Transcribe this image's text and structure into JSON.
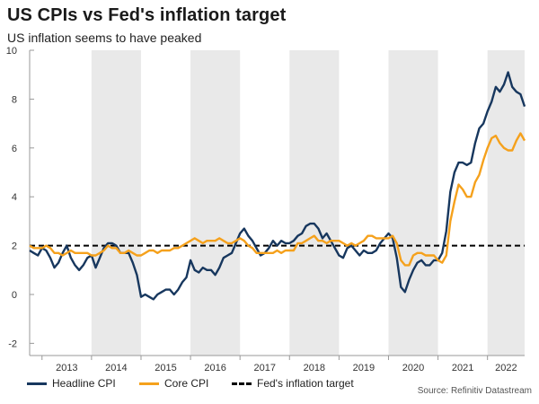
{
  "title": "US CPIs vs Fed's inflation target",
  "subtitle": "US inflation seems to have peaked",
  "source": "Source: Refinitiv Datastream",
  "colors": {
    "headline": "#17375e",
    "core": "#f5a11c",
    "target": "#000000",
    "shade": "#e9e9e9",
    "axis": "#999999"
  },
  "chart_data": {
    "type": "line",
    "title": "US CPIs vs Fed's inflation target",
    "subtitle": "US inflation seems to have peaked",
    "ylim": [
      -2.5,
      10
    ],
    "yticks": [
      -2,
      0,
      2,
      4,
      6,
      8,
      10
    ],
    "xlim": [
      "2012-10",
      "2022-10"
    ],
    "year_labels": [
      "2013",
      "2014",
      "2015",
      "2016",
      "2017",
      "2018",
      "2019",
      "2020",
      "2021",
      "2022"
    ],
    "shaded_years": [
      "2014",
      "2016",
      "2018",
      "2020",
      "2022"
    ],
    "grid": false,
    "legend_position": "bottom",
    "series": [
      {
        "name": "Headline CPI",
        "color": "#17375e",
        "points": [
          [
            "2012-10",
            1.8
          ],
          [
            "2012-11",
            1.7
          ],
          [
            "2012-12",
            1.6
          ],
          [
            "2013-01",
            1.9
          ],
          [
            "2013-02",
            1.8
          ],
          [
            "2013-03",
            1.5
          ],
          [
            "2013-04",
            1.1
          ],
          [
            "2013-05",
            1.3
          ],
          [
            "2013-06",
            1.7
          ],
          [
            "2013-07",
            2.0
          ],
          [
            "2013-08",
            1.5
          ],
          [
            "2013-09",
            1.2
          ],
          [
            "2013-10",
            1.0
          ],
          [
            "2013-11",
            1.2
          ],
          [
            "2013-12",
            1.5
          ],
          [
            "2014-01",
            1.6
          ],
          [
            "2014-02",
            1.1
          ],
          [
            "2014-03",
            1.5
          ],
          [
            "2014-04",
            1.9
          ],
          [
            "2014-05",
            2.1
          ],
          [
            "2014-06",
            2.1
          ],
          [
            "2014-07",
            2.0
          ],
          [
            "2014-08",
            1.7
          ],
          [
            "2014-09",
            1.7
          ],
          [
            "2014-10",
            1.7
          ],
          [
            "2014-11",
            1.3
          ],
          [
            "2014-12",
            0.8
          ],
          [
            "2015-01",
            -0.1
          ],
          [
            "2015-02",
            0.0
          ],
          [
            "2015-03",
            -0.1
          ],
          [
            "2015-04",
            -0.2
          ],
          [
            "2015-05",
            0.0
          ],
          [
            "2015-06",
            0.1
          ],
          [
            "2015-07",
            0.2
          ],
          [
            "2015-08",
            0.2
          ],
          [
            "2015-09",
            0.0
          ],
          [
            "2015-10",
            0.2
          ],
          [
            "2015-11",
            0.5
          ],
          [
            "2015-12",
            0.7
          ],
          [
            "2016-01",
            1.4
          ],
          [
            "2016-02",
            1.0
          ],
          [
            "2016-03",
            0.9
          ],
          [
            "2016-04",
            1.1
          ],
          [
            "2016-05",
            1.0
          ],
          [
            "2016-06",
            1.0
          ],
          [
            "2016-07",
            0.8
          ],
          [
            "2016-08",
            1.1
          ],
          [
            "2016-09",
            1.5
          ],
          [
            "2016-10",
            1.6
          ],
          [
            "2016-11",
            1.7
          ],
          [
            "2016-12",
            2.1
          ],
          [
            "2017-01",
            2.5
          ],
          [
            "2017-02",
            2.7
          ],
          [
            "2017-03",
            2.4
          ],
          [
            "2017-04",
            2.2
          ],
          [
            "2017-05",
            1.9
          ],
          [
            "2017-06",
            1.6
          ],
          [
            "2017-07",
            1.7
          ],
          [
            "2017-08",
            1.9
          ],
          [
            "2017-09",
            2.2
          ],
          [
            "2017-10",
            2.0
          ],
          [
            "2017-11",
            2.2
          ],
          [
            "2017-12",
            2.1
          ],
          [
            "2018-01",
            2.1
          ],
          [
            "2018-02",
            2.2
          ],
          [
            "2018-03",
            2.4
          ],
          [
            "2018-04",
            2.5
          ],
          [
            "2018-05",
            2.8
          ],
          [
            "2018-06",
            2.9
          ],
          [
            "2018-07",
            2.9
          ],
          [
            "2018-08",
            2.7
          ],
          [
            "2018-09",
            2.3
          ],
          [
            "2018-10",
            2.5
          ],
          [
            "2018-11",
            2.2
          ],
          [
            "2018-12",
            1.9
          ],
          [
            "2019-01",
            1.6
          ],
          [
            "2019-02",
            1.5
          ],
          [
            "2019-03",
            1.9
          ],
          [
            "2019-04",
            2.0
          ],
          [
            "2019-05",
            1.8
          ],
          [
            "2019-06",
            1.6
          ],
          [
            "2019-07",
            1.8
          ],
          [
            "2019-08",
            1.7
          ],
          [
            "2019-09",
            1.7
          ],
          [
            "2019-10",
            1.8
          ],
          [
            "2019-11",
            2.1
          ],
          [
            "2019-12",
            2.3
          ],
          [
            "2020-01",
            2.5
          ],
          [
            "2020-02",
            2.3
          ],
          [
            "2020-03",
            1.5
          ],
          [
            "2020-04",
            0.3
          ],
          [
            "2020-05",
            0.1
          ],
          [
            "2020-06",
            0.6
          ],
          [
            "2020-07",
            1.0
          ],
          [
            "2020-08",
            1.3
          ],
          [
            "2020-09",
            1.4
          ],
          [
            "2020-10",
            1.2
          ],
          [
            "2020-11",
            1.2
          ],
          [
            "2020-12",
            1.4
          ],
          [
            "2021-01",
            1.4
          ],
          [
            "2021-02",
            1.7
          ],
          [
            "2021-03",
            2.6
          ],
          [
            "2021-04",
            4.2
          ],
          [
            "2021-05",
            5.0
          ],
          [
            "2021-06",
            5.4
          ],
          [
            "2021-07",
            5.4
          ],
          [
            "2021-08",
            5.3
          ],
          [
            "2021-09",
            5.4
          ],
          [
            "2021-10",
            6.2
          ],
          [
            "2021-11",
            6.8
          ],
          [
            "2021-12",
            7.0
          ],
          [
            "2022-01",
            7.5
          ],
          [
            "2022-02",
            7.9
          ],
          [
            "2022-03",
            8.5
          ],
          [
            "2022-04",
            8.3
          ],
          [
            "2022-05",
            8.6
          ],
          [
            "2022-06",
            9.1
          ],
          [
            "2022-07",
            8.5
          ],
          [
            "2022-08",
            8.3
          ],
          [
            "2022-09",
            8.2
          ],
          [
            "2022-10",
            7.7
          ]
        ]
      },
      {
        "name": "Core CPI",
        "color": "#f5a11c",
        "points": [
          [
            "2012-10",
            2.0
          ],
          [
            "2012-11",
            1.9
          ],
          [
            "2012-12",
            1.9
          ],
          [
            "2013-01",
            1.9
          ],
          [
            "2013-02",
            2.0
          ],
          [
            "2013-03",
            1.9
          ],
          [
            "2013-04",
            1.7
          ],
          [
            "2013-05",
            1.7
          ],
          [
            "2013-06",
            1.6
          ],
          [
            "2013-07",
            1.7
          ],
          [
            "2013-08",
            1.8
          ],
          [
            "2013-09",
            1.7
          ],
          [
            "2013-10",
            1.7
          ],
          [
            "2013-11",
            1.7
          ],
          [
            "2013-12",
            1.7
          ],
          [
            "2014-01",
            1.6
          ],
          [
            "2014-02",
            1.6
          ],
          [
            "2014-03",
            1.7
          ],
          [
            "2014-04",
            1.8
          ],
          [
            "2014-05",
            2.0
          ],
          [
            "2014-06",
            1.9
          ],
          [
            "2014-07",
            1.9
          ],
          [
            "2014-08",
            1.7
          ],
          [
            "2014-09",
            1.7
          ],
          [
            "2014-10",
            1.8
          ],
          [
            "2014-11",
            1.7
          ],
          [
            "2014-12",
            1.6
          ],
          [
            "2015-01",
            1.6
          ],
          [
            "2015-02",
            1.7
          ],
          [
            "2015-03",
            1.8
          ],
          [
            "2015-04",
            1.8
          ],
          [
            "2015-05",
            1.7
          ],
          [
            "2015-06",
            1.8
          ],
          [
            "2015-07",
            1.8
          ],
          [
            "2015-08",
            1.8
          ],
          [
            "2015-09",
            1.9
          ],
          [
            "2015-10",
            1.9
          ],
          [
            "2015-11",
            2.0
          ],
          [
            "2015-12",
            2.1
          ],
          [
            "2016-01",
            2.2
          ],
          [
            "2016-02",
            2.3
          ],
          [
            "2016-03",
            2.2
          ],
          [
            "2016-04",
            2.1
          ],
          [
            "2016-05",
            2.2
          ],
          [
            "2016-06",
            2.2
          ],
          [
            "2016-07",
            2.2
          ],
          [
            "2016-08",
            2.3
          ],
          [
            "2016-09",
            2.2
          ],
          [
            "2016-10",
            2.1
          ],
          [
            "2016-11",
            2.1
          ],
          [
            "2016-12",
            2.2
          ],
          [
            "2017-01",
            2.3
          ],
          [
            "2017-02",
            2.2
          ],
          [
            "2017-03",
            2.0
          ],
          [
            "2017-04",
            1.9
          ],
          [
            "2017-05",
            1.7
          ],
          [
            "2017-06",
            1.7
          ],
          [
            "2017-07",
            1.7
          ],
          [
            "2017-08",
            1.7
          ],
          [
            "2017-09",
            1.7
          ],
          [
            "2017-10",
            1.8
          ],
          [
            "2017-11",
            1.7
          ],
          [
            "2017-12",
            1.8
          ],
          [
            "2018-01",
            1.8
          ],
          [
            "2018-02",
            1.8
          ],
          [
            "2018-03",
            2.1
          ],
          [
            "2018-04",
            2.1
          ],
          [
            "2018-05",
            2.2
          ],
          [
            "2018-06",
            2.3
          ],
          [
            "2018-07",
            2.4
          ],
          [
            "2018-08",
            2.2
          ],
          [
            "2018-09",
            2.2
          ],
          [
            "2018-10",
            2.1
          ],
          [
            "2018-11",
            2.2
          ],
          [
            "2018-12",
            2.2
          ],
          [
            "2019-01",
            2.2
          ],
          [
            "2019-02",
            2.1
          ],
          [
            "2019-03",
            2.0
          ],
          [
            "2019-04",
            2.1
          ],
          [
            "2019-05",
            2.0
          ],
          [
            "2019-06",
            2.1
          ],
          [
            "2019-07",
            2.2
          ],
          [
            "2019-08",
            2.4
          ],
          [
            "2019-09",
            2.4
          ],
          [
            "2019-10",
            2.3
          ],
          [
            "2019-11",
            2.3
          ],
          [
            "2019-12",
            2.3
          ],
          [
            "2020-01",
            2.3
          ],
          [
            "2020-02",
            2.4
          ],
          [
            "2020-03",
            2.1
          ],
          [
            "2020-04",
            1.4
          ],
          [
            "2020-05",
            1.2
          ],
          [
            "2020-06",
            1.2
          ],
          [
            "2020-07",
            1.6
          ],
          [
            "2020-08",
            1.7
          ],
          [
            "2020-09",
            1.7
          ],
          [
            "2020-10",
            1.6
          ],
          [
            "2020-11",
            1.6
          ],
          [
            "2020-12",
            1.6
          ],
          [
            "2021-01",
            1.4
          ],
          [
            "2021-02",
            1.3
          ],
          [
            "2021-03",
            1.6
          ],
          [
            "2021-04",
            3.0
          ],
          [
            "2021-05",
            3.8
          ],
          [
            "2021-06",
            4.5
          ],
          [
            "2021-07",
            4.3
          ],
          [
            "2021-08",
            4.0
          ],
          [
            "2021-09",
            4.0
          ],
          [
            "2021-10",
            4.6
          ],
          [
            "2021-11",
            4.9
          ],
          [
            "2021-12",
            5.5
          ],
          [
            "2022-01",
            6.0
          ],
          [
            "2022-02",
            6.4
          ],
          [
            "2022-03",
            6.5
          ],
          [
            "2022-04",
            6.2
          ],
          [
            "2022-05",
            6.0
          ],
          [
            "2022-06",
            5.9
          ],
          [
            "2022-07",
            5.9
          ],
          [
            "2022-08",
            6.3
          ],
          [
            "2022-09",
            6.6
          ],
          [
            "2022-10",
            6.3
          ]
        ]
      },
      {
        "name": "Fed's inflation target",
        "color": "#000000",
        "dashed": true,
        "constant": 2
      }
    ]
  }
}
